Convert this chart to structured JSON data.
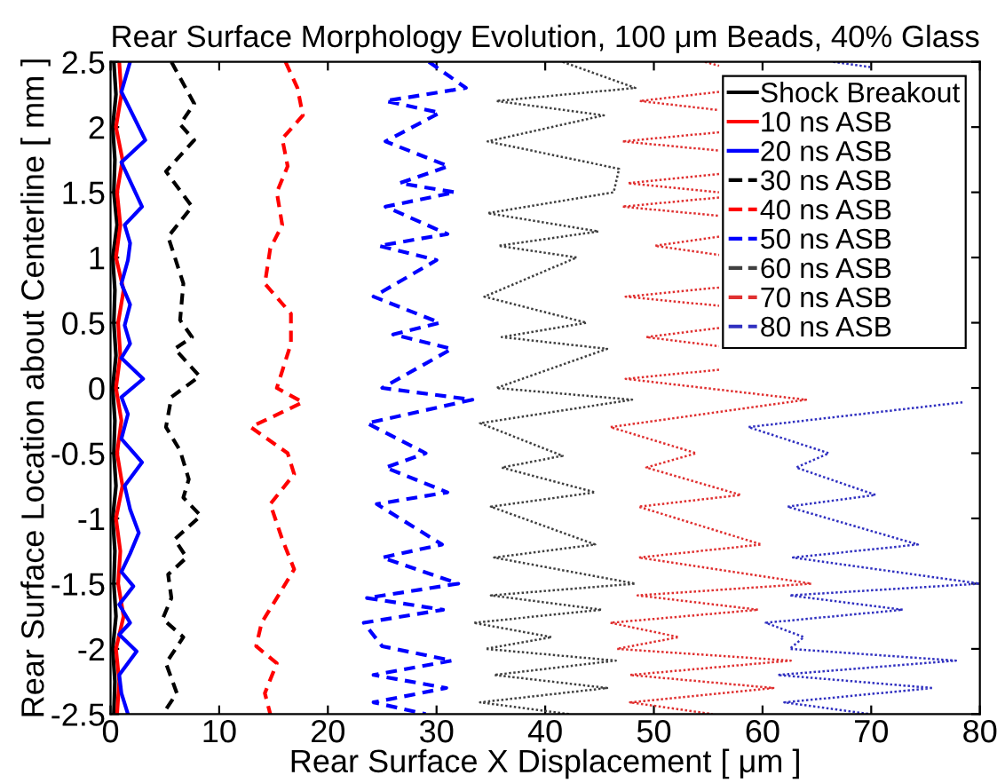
{
  "chart_data": {
    "type": "line",
    "title": "Rear Surface Morphology Evolution, 100 μm Beads, 40% Glass",
    "xlabel": "Rear Surface X Displacement [ μm ]",
    "ylabel": "Rear Surface Location about Centerline [ mm ]",
    "xlim": [
      0,
      80
    ],
    "ylim": [
      -2.5,
      2.5
    ],
    "xticks": [
      0,
      10,
      20,
      30,
      40,
      50,
      60,
      70,
      80
    ],
    "yticks": [
      -2.5,
      -2,
      -1.5,
      -1,
      -0.5,
      0,
      0.5,
      1,
      1.5,
      2,
      2.5
    ],
    "legend": "top right",
    "grid": false,
    "series": [
      {
        "name": "Shock Breakout",
        "color": "#000000",
        "line_style": "solid",
        "x": [
          0.3,
          0.5,
          0.2,
          0.4,
          0.3,
          0.6,
          0.2,
          0.4,
          0.3,
          0.5,
          0.2,
          0.4,
          0.3,
          0.5,
          0.2,
          0.4,
          0.3,
          0.5,
          0.2,
          0.4,
          0.3
        ],
        "values": [
          2.5,
          2.25,
          2,
          1.75,
          1.5,
          1.25,
          1,
          0.75,
          0.5,
          0.25,
          0,
          -0.25,
          -0.5,
          -0.75,
          -1,
          -1.25,
          -1.5,
          -1.75,
          -2,
          -2.25,
          -2.5
        ]
      },
      {
        "name": "10 ns ASB",
        "color": "#ff0000",
        "line_style": "solid",
        "x": [
          0.8,
          1.0,
          0.5,
          1.1,
          0.6,
          0.9,
          0.5,
          1.2,
          0.7,
          0.9,
          0.5,
          1.0,
          0.6,
          1.1,
          0.5,
          0.9,
          0.7,
          1.2,
          0.5,
          0.8,
          0.6
        ],
        "values": [
          2.5,
          2.25,
          2,
          1.75,
          1.5,
          1.25,
          1,
          0.75,
          0.5,
          0.25,
          0,
          -0.25,
          -0.5,
          -0.75,
          -1,
          -1.25,
          -1.5,
          -1.75,
          -2,
          -2.25,
          -2.5
        ]
      },
      {
        "name": "20 ns ASB",
        "color": "#0000ff",
        "line_style": "solid",
        "x": [
          1.8,
          1.0,
          3.2,
          1.0,
          2.9,
          1.3,
          1.8,
          1.6,
          1.0,
          1.8,
          1.3,
          1.8,
          1.0,
          3.0,
          1.0,
          1.6,
          1.0,
          2.9,
          1.3,
          1.8,
          2.6,
          1.8,
          1.0,
          2.1,
          0.8,
          1.8,
          0.8,
          2.4,
          0.8,
          1.0,
          1.6
        ],
        "values": [
          2.5,
          2.27,
          1.9,
          1.73,
          1.39,
          1.25,
          1.11,
          0.98,
          0.8,
          0.64,
          0.48,
          0.34,
          0.23,
          0.07,
          -0.07,
          -0.2,
          -0.39,
          -0.57,
          -0.75,
          -0.93,
          -1.11,
          -1.27,
          -1.41,
          -1.52,
          -1.66,
          -1.8,
          -1.89,
          -2.02,
          -2.2,
          -2.34,
          -2.5
        ]
      },
      {
        "name": "30 ns ASB",
        "color": "#000000",
        "line_style": "dashed",
        "x": [
          5.6,
          7.7,
          6.4,
          7.7,
          5.1,
          7.5,
          5.3,
          6.7,
          6.4,
          7.5,
          5.9,
          8.2,
          5.6,
          5.1,
          6.4,
          7.2,
          6.7,
          8.3,
          5.9,
          7.0,
          5.3,
          5.6,
          4.8,
          6.7,
          5.1,
          6.1,
          4.8
        ],
        "values": [
          2.5,
          2.18,
          2.02,
          1.9,
          1.66,
          1.39,
          1.16,
          0.8,
          0.52,
          0.39,
          0.3,
          0.09,
          -0.07,
          -0.3,
          -0.48,
          -0.7,
          -0.84,
          -0.98,
          -1.16,
          -1.3,
          -1.43,
          -1.61,
          -1.77,
          -1.91,
          -2.11,
          -2.34,
          -2.5
        ]
      },
      {
        "name": "40 ns ASB",
        "color": "#ff0000",
        "line_style": "dashed",
        "x": [
          16.1,
          17.2,
          17.7,
          15.8,
          16.3,
          15.3,
          15.8,
          14.7,
          14.2,
          16.6,
          16.6,
          15.3,
          17.7,
          12.9,
          16.3,
          16.9,
          14.7,
          15.8,
          16.9,
          15.3,
          13.9,
          13.4,
          15.3,
          14.2,
          14.7
        ],
        "values": [
          2.5,
          2.3,
          2.09,
          1.91,
          1.7,
          1.5,
          1.25,
          1.07,
          0.8,
          0.57,
          0.34,
          0.0,
          -0.11,
          -0.3,
          -0.5,
          -0.66,
          -0.89,
          -1.16,
          -1.39,
          -1.61,
          -1.8,
          -1.98,
          -2.11,
          -2.34,
          -2.5
        ]
      },
      {
        "name": "50 ns ASB",
        "color": "#0000ff",
        "line_style": "dashed",
        "x": [
          29.3,
          32.7,
          25.3,
          30.3,
          25.3,
          31.1,
          26.6,
          31.7,
          25.3,
          31.0,
          24.7,
          30.0,
          24.2,
          30.3,
          26.0,
          31.4,
          25.0,
          33.3,
          23.6,
          29.0,
          25.3,
          31.0,
          24.5,
          30.5,
          25.0,
          32.0,
          23.6,
          30.6,
          23.3,
          25.0,
          31.4,
          24.2,
          30.9,
          24.2,
          29.0
        ],
        "values": [
          2.5,
          2.3,
          2.2,
          2.11,
          1.89,
          1.7,
          1.57,
          1.5,
          1.39,
          1.18,
          1.09,
          0.98,
          0.7,
          0.5,
          0.41,
          0.3,
          0.0,
          -0.09,
          -0.27,
          -0.5,
          -0.61,
          -0.8,
          -0.89,
          -1.2,
          -1.3,
          -1.5,
          -1.61,
          -1.7,
          -1.8,
          -1.98,
          -2.09,
          -2.2,
          -2.3,
          -2.41,
          -2.5
        ]
      },
      {
        "name": "60 ns ASB",
        "color": "#404040",
        "line_style": "dotted",
        "x": [
          41.6,
          48.3,
          35.5,
          45.4,
          34.7,
          46.8,
          46.3,
          34.7,
          44.9,
          35.7,
          42.9,
          34.4,
          43.8,
          36.0,
          45.7,
          35.5,
          48.0,
          34.0,
          41.6,
          36.0,
          44.6,
          35.0,
          44.6,
          35.3,
          48.3,
          35.0,
          45.2,
          33.4,
          40.6,
          34.5,
          46.5,
          35.3,
          45.7,
          34.0,
          42.2
        ],
        "values": [
          2.5,
          2.3,
          2.2,
          2.09,
          1.89,
          1.68,
          1.5,
          1.34,
          1.2,
          1.09,
          1.0,
          0.7,
          0.5,
          0.39,
          0.3,
          0.0,
          -0.09,
          -0.27,
          -0.52,
          -0.61,
          -0.8,
          -0.91,
          -1.2,
          -1.3,
          -1.5,
          -1.59,
          -1.7,
          -1.8,
          -1.91,
          -2.0,
          -2.09,
          -2.2,
          -2.3,
          -2.41,
          -2.5
        ]
      },
      {
        "name": "70 ns ASB",
        "color": "#e03030",
        "line_style": "dotted",
        "x": [
          54.7,
          56,
          null,
          56,
          48.7,
          56,
          null,
          56,
          47.1,
          56,
          null,
          56,
          47.6,
          56,
          null,
          56,
          47.1,
          56,
          null,
          56,
          50.1,
          56,
          null,
          56,
          47.4,
          56,
          null,
          56,
          49.3,
          56,
          null,
          56,
          47.4,
          64.0,
          46.0,
          53.9,
          49.3,
          58.0,
          48.6,
          59.9,
          48.6,
          64.5,
          48.5,
          59.6,
          46.0,
          52.3,
          46.6,
          62.6,
          47.8,
          61.0,
          47.8,
          55.4
        ],
        "values": [
          2.5,
          2.47,
          null,
          2.27,
          2.2,
          2.13,
          null,
          1.96,
          1.89,
          1.82,
          null,
          1.64,
          1.57,
          1.5,
          null,
          1.46,
          1.39,
          1.32,
          null,
          1.16,
          1.09,
          1.02,
          null,
          0.77,
          0.7,
          0.63,
          null,
          0.46,
          0.39,
          0.32,
          null,
          0.14,
          0.07,
          -0.09,
          -0.3,
          -0.5,
          -0.61,
          -0.82,
          -0.91,
          -1.2,
          -1.3,
          -1.5,
          -1.59,
          -1.7,
          -1.8,
          -1.91,
          -2.0,
          -2.09,
          -2.2,
          -2.3,
          -2.41,
          -2.5
        ]
      },
      {
        "name": "80 ns ASB",
        "color": "#3030c0",
        "line_style": "dotted",
        "x": [
          66.5,
          69.9,
          null,
          78.4,
          58.7,
          66.1,
          63.1,
          70.4,
          62.3,
          74.3,
          62.8,
          80.0,
          62.5,
          72.9,
          60.3,
          63.8,
          62.5,
          77.8,
          61.4,
          75.7,
          62.0,
          69.9
        ],
        "values": [
          2.5,
          2.46,
          null,
          -0.11,
          -0.3,
          -0.5,
          -0.61,
          -0.82,
          -0.91,
          -1.2,
          -1.3,
          -1.5,
          -1.59,
          -1.7,
          -1.8,
          -1.91,
          -2.0,
          -2.09,
          -2.2,
          -2.3,
          -2.41,
          -2.5
        ]
      }
    ]
  }
}
